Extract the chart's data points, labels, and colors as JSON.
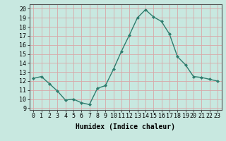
{
  "x": [
    0,
    1,
    2,
    3,
    4,
    5,
    6,
    7,
    8,
    9,
    10,
    11,
    12,
    13,
    14,
    15,
    16,
    17,
    18,
    19,
    20,
    21,
    22,
    23
  ],
  "y": [
    12.3,
    12.5,
    11.7,
    10.9,
    9.9,
    10.0,
    9.6,
    9.4,
    11.2,
    11.5,
    13.3,
    15.3,
    17.1,
    19.0,
    19.9,
    19.1,
    18.6,
    17.2,
    14.7,
    13.8,
    12.5,
    12.4,
    12.2,
    12.0
  ],
  "line_color": "#2e7d6e",
  "marker": "D",
  "marker_size": 2.0,
  "line_width": 1.0,
  "bg_color": "#c8e8e0",
  "grid_color": "#d8a8a8",
  "xlabel": "Humidex (Indice chaleur)",
  "xlabel_fontsize": 7,
  "tick_fontsize": 6,
  "xlim": [
    -0.5,
    23.5
  ],
  "ylim": [
    8.8,
    20.5
  ],
  "yticks": [
    9,
    10,
    11,
    12,
    13,
    14,
    15,
    16,
    17,
    18,
    19,
    20
  ],
  "xticks": [
    0,
    1,
    2,
    3,
    4,
    5,
    6,
    7,
    8,
    9,
    10,
    11,
    12,
    13,
    14,
    15,
    16,
    17,
    18,
    19,
    20,
    21,
    22,
    23
  ]
}
